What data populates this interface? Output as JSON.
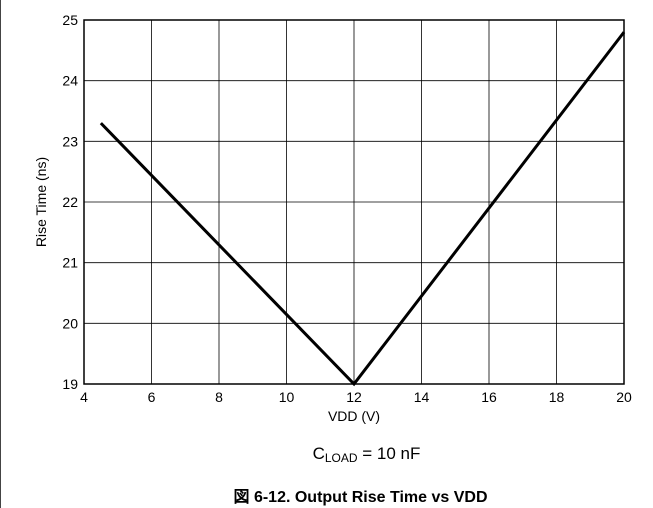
{
  "chart_data": {
    "type": "line",
    "xlabel": "VDD (V)",
    "ylabel": "Rise Time (ns)",
    "xlim": [
      4,
      20
    ],
    "ylim": [
      19,
      25
    ],
    "x_ticks": [
      4,
      6,
      8,
      10,
      12,
      14,
      16,
      18,
      20
    ],
    "y_ticks": [
      19,
      20,
      21,
      22,
      23,
      24,
      25
    ],
    "grid": true,
    "series": [
      {
        "x": [
          4.5,
          12,
          20
        ],
        "y": [
          23.3,
          19.0,
          24.8
        ],
        "color": "#000000"
      }
    ],
    "condition": {
      "symbol": "C",
      "subscript": "LOAD",
      "text": " = 10 nF"
    },
    "caption": "図 6-12. Output Rise Time vs VDD"
  }
}
